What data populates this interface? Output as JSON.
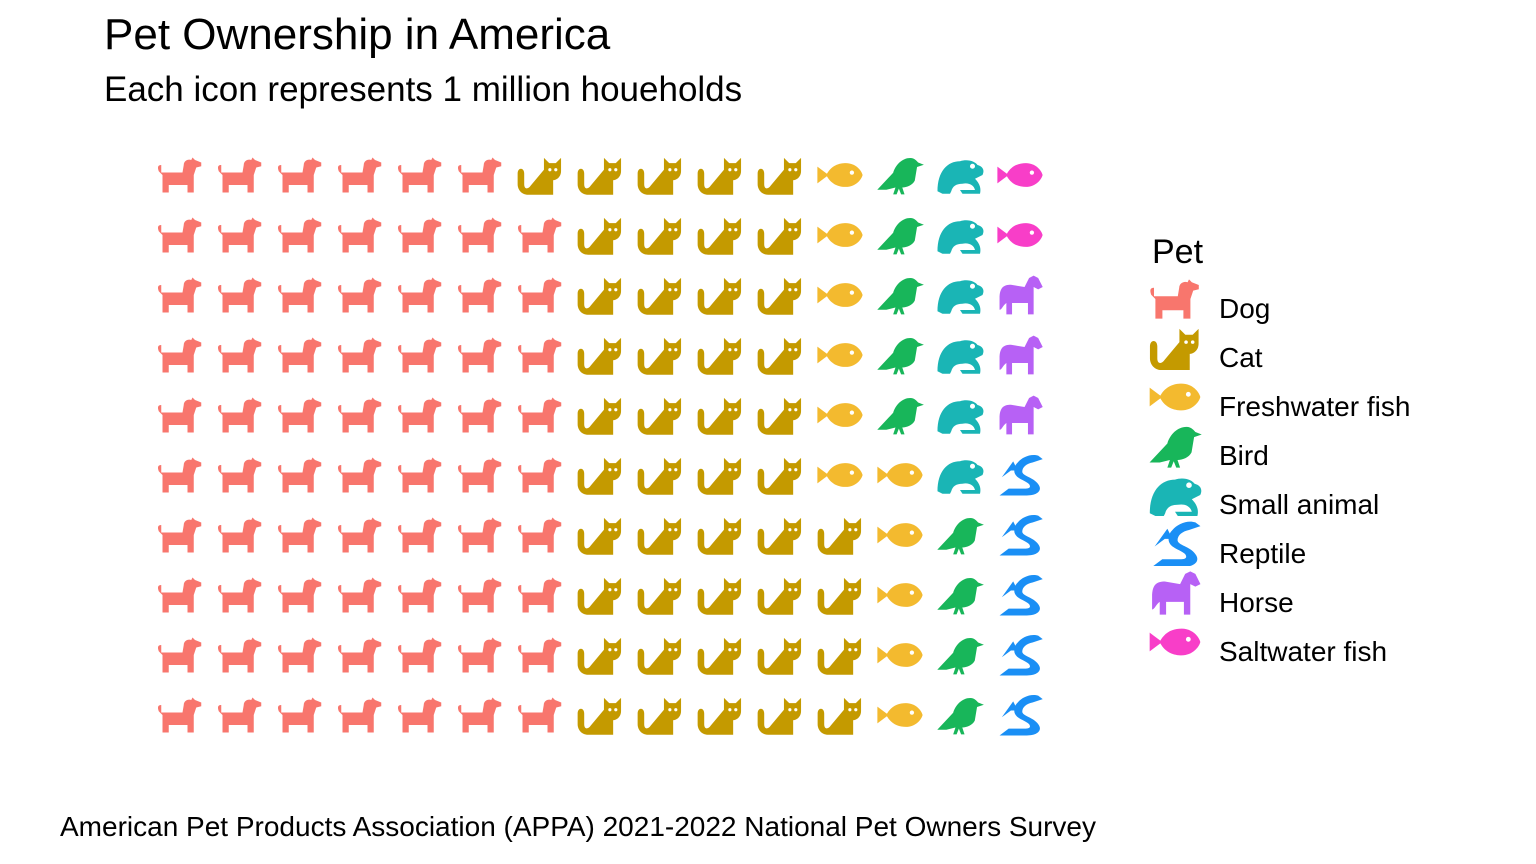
{
  "title": "Pet Ownership in America",
  "subtitle": "Each icon represents 1 million houeholds",
  "caption": "American Pet Products Association (APPA) 2021-2022 National Pet Owners Survey",
  "chart_data": {
    "type": "waffle",
    "unit": "1 million households",
    "rows": 10,
    "columns": 15,
    "fill_order": "column-wise, bottom to top, left to right",
    "legend_title": "Pet",
    "series": [
      {
        "name": "Dog",
        "value": 69,
        "color": "#F8766D",
        "icon": "dog-icon"
      },
      {
        "name": "Cat",
        "value": 45,
        "color": "#C49A00",
        "icon": "cat-icon"
      },
      {
        "name": "Freshwater fish",
        "value": 11,
        "color": "#F3BA2F",
        "icon": "fish-icon"
      },
      {
        "name": "Bird",
        "value": 9,
        "color": "#18B65A",
        "icon": "bird-icon"
      },
      {
        "name": "Small animal",
        "value": 6,
        "color": "#1AB5B5",
        "icon": "frog-icon"
      },
      {
        "name": "Reptile",
        "value": 5,
        "color": "#1A8FF5",
        "icon": "dragon-icon"
      },
      {
        "name": "Horse",
        "value": 3,
        "color": "#B761F5",
        "icon": "horse-icon"
      },
      {
        "name": "Saltwater fish",
        "value": 2,
        "color": "#F83EC8",
        "icon": "fish-icon"
      }
    ]
  }
}
